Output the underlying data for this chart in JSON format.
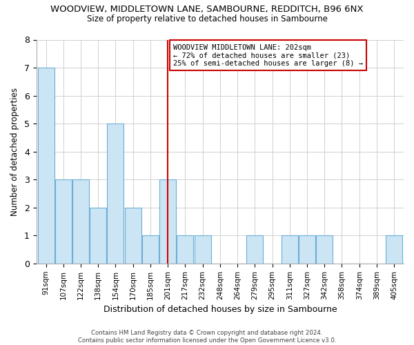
{
  "title1": "WOODVIEW, MIDDLETOWN LANE, SAMBOURNE, REDDITCH, B96 6NX",
  "title2": "Size of property relative to detached houses in Sambourne",
  "xlabel": "Distribution of detached houses by size in Sambourne",
  "ylabel": "Number of detached properties",
  "categories": [
    "91sqm",
    "107sqm",
    "122sqm",
    "138sqm",
    "154sqm",
    "170sqm",
    "185sqm",
    "201sqm",
    "217sqm",
    "232sqm",
    "248sqm",
    "264sqm",
    "279sqm",
    "295sqm",
    "311sqm",
    "327sqm",
    "342sqm",
    "358sqm",
    "374sqm",
    "389sqm",
    "405sqm"
  ],
  "values": [
    7,
    3,
    3,
    2,
    5,
    2,
    1,
    3,
    1,
    1,
    0,
    0,
    1,
    0,
    1,
    1,
    1,
    0,
    0,
    0,
    1
  ],
  "bar_color": "#cce5f5",
  "bar_edge_color": "#6baed6",
  "highlight_index": 7,
  "highlight_line_color": "#cc0000",
  "ylim": [
    0,
    8
  ],
  "yticks": [
    0,
    1,
    2,
    3,
    4,
    5,
    6,
    7,
    8
  ],
  "annotation_box_text": "WOODVIEW MIDDLETOWN LANE: 202sqm\n← 72% of detached houses are smaller (23)\n25% of semi-detached houses are larger (8) →",
  "annotation_box_color": "#cc0000",
  "footnote": "Contains HM Land Registry data © Crown copyright and database right 2024.\nContains public sector information licensed under the Open Government Licence v3.0.",
  "bg_color": "#ffffff",
  "grid_color": "#d0d0d0"
}
